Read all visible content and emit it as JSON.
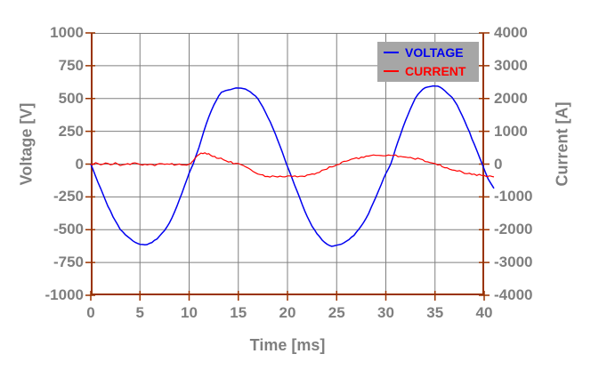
{
  "colors": {
    "axis": "#993300",
    "grid": "#808080",
    "text": "#7f7f7f",
    "legend_bg": "#a6a6a6",
    "plot_bg": "#ffffff",
    "voltage": "#0000f0",
    "current": "#ff0000"
  },
  "chart_data": {
    "type": "line",
    "title": "",
    "xlabel": "Time [ms]",
    "grid": true,
    "xlim": [
      0,
      41
    ],
    "x_ticks": [
      0,
      5,
      10,
      15,
      20,
      25,
      30,
      35,
      40
    ],
    "y_left": {
      "label": "Voltage [V]",
      "lim": [
        -1000,
        1000
      ],
      "ticks": [
        1000,
        750,
        500,
        250,
        0,
        -250,
        -500,
        -750,
        -1000
      ]
    },
    "y_right": {
      "label": "Current [A]",
      "lim": [
        -4000,
        4000
      ],
      "ticks": [
        4000,
        3000,
        2000,
        1000,
        0,
        -1000,
        -2000,
        -3000,
        -4000
      ]
    },
    "legend": {
      "position": "top-right",
      "entries": [
        "VOLTAGE",
        "CURRENT"
      ]
    },
    "series": [
      {
        "name": "VOLTAGE",
        "axis": "left",
        "color": "#0000f0",
        "x": [
          0,
          1,
          2,
          3,
          4,
          5,
          5.5,
          6,
          7,
          8,
          9,
          10,
          10.4,
          11,
          12,
          13,
          13.5,
          14,
          15,
          15.5,
          16,
          17,
          18,
          19,
          19.9,
          21,
          22,
          23,
          24,
          24.5,
          25,
          26,
          27,
          28,
          29,
          30,
          30.5,
          31,
          32,
          33,
          34,
          35,
          35.5,
          36,
          37,
          38,
          39,
          39.8,
          40.4,
          41
        ],
        "y": [
          0,
          -185,
          -360,
          -495,
          -570,
          -610,
          -615,
          -605,
          -550,
          -445,
          -275,
          -70,
          0,
          130,
          360,
          520,
          555,
          565,
          580,
          575,
          560,
          495,
          360,
          185,
          0,
          -210,
          -400,
          -530,
          -610,
          -625,
          -620,
          -590,
          -520,
          -410,
          -250,
          -70,
          0,
          120,
          330,
          500,
          580,
          595,
          585,
          560,
          480,
          330,
          150,
          0,
          -110,
          -185
        ]
      },
      {
        "name": "CURRENT",
        "axis": "right",
        "color": "#ff0000",
        "x": [
          0,
          0.5,
          1,
          1.5,
          2,
          2.5,
          3,
          3.5,
          4,
          4.5,
          5,
          5.5,
          6,
          6.5,
          7,
          7.5,
          8,
          8.5,
          9,
          9.5,
          10,
          10.3,
          10.6,
          11,
          11.4,
          11.8,
          12.2,
          12.6,
          13,
          13.5,
          14,
          14.5,
          15,
          15.5,
          16,
          16.5,
          17,
          17.5,
          18,
          19,
          20,
          21,
          22,
          23,
          24,
          25,
          25.5,
          26,
          27,
          28,
          29,
          30,
          31,
          32,
          33,
          34,
          35,
          35.5,
          36,
          37,
          38,
          39,
          40,
          41
        ],
        "y": [
          0,
          20,
          -20,
          30,
          -10,
          20,
          -30,
          10,
          -20,
          30,
          0,
          -20,
          20,
          -30,
          10,
          -10,
          20,
          -20,
          10,
          -30,
          -20,
          60,
          160,
          280,
          330,
          320,
          280,
          230,
          190,
          150,
          80,
          30,
          0,
          -40,
          -140,
          -240,
          -310,
          -350,
          -370,
          -380,
          -370,
          -380,
          -340,
          -260,
          -140,
          -20,
          30,
          90,
          170,
          230,
          260,
          270,
          255,
          225,
          170,
          100,
          20,
          -30,
          -90,
          -180,
          -260,
          -320,
          -350,
          -390
        ]
      }
    ]
  }
}
